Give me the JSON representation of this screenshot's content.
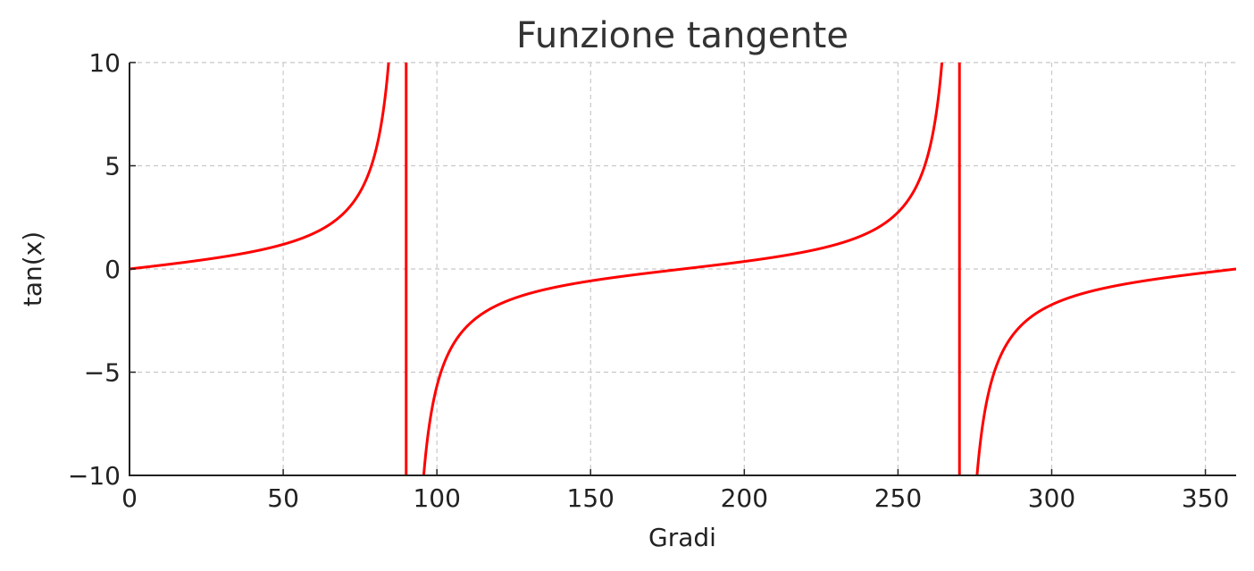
{
  "chart_data": {
    "type": "line",
    "title": "Funzione tangente",
    "xlabel": "Gradi",
    "ylabel": "tan(x)",
    "xlim": [
      0,
      360
    ],
    "ylim": [
      -10,
      10
    ],
    "grid": true,
    "xticks": [
      0,
      50,
      100,
      150,
      200,
      250,
      300,
      350
    ],
    "yticks": [
      -10,
      -5,
      0,
      5,
      10
    ],
    "xtick_labels": [
      "0",
      "50",
      "100",
      "150",
      "200",
      "250",
      "300",
      "350"
    ],
    "ytick_labels": [
      "−10",
      "−5",
      "0",
      "5",
      "10"
    ],
    "color": "#ff0000",
    "series": [
      {
        "function": "tan",
        "x": [
          0,
          10,
          20,
          30,
          40,
          50,
          60,
          70,
          80,
          84,
          85,
          89.8,
          90.2,
          95,
          96,
          100,
          110,
          120,
          130,
          140,
          150,
          160,
          170,
          180,
          190,
          200,
          210,
          220,
          230,
          240,
          250,
          260,
          264,
          265,
          269.8,
          270.2,
          275,
          276,
          280,
          290,
          300,
          310,
          320,
          330,
          340,
          350,
          360
        ],
        "y": [
          0,
          0.18,
          0.36,
          0.58,
          0.84,
          1.19,
          1.73,
          2.75,
          5.67,
          9.51,
          10,
          10,
          -10,
          -10,
          -9.51,
          -5.67,
          -2.75,
          -1.73,
          -1.19,
          -0.84,
          -0.58,
          -0.36,
          -0.18,
          0,
          0.18,
          0.36,
          0.58,
          0.84,
          1.19,
          1.73,
          2.75,
          5.67,
          9.51,
          10,
          10,
          -10,
          -10,
          -9.51,
          -5.67,
          -2.75,
          -1.73,
          -1.19,
          -0.84,
          -0.58,
          -0.36,
          -0.18,
          0
        ]
      }
    ]
  }
}
